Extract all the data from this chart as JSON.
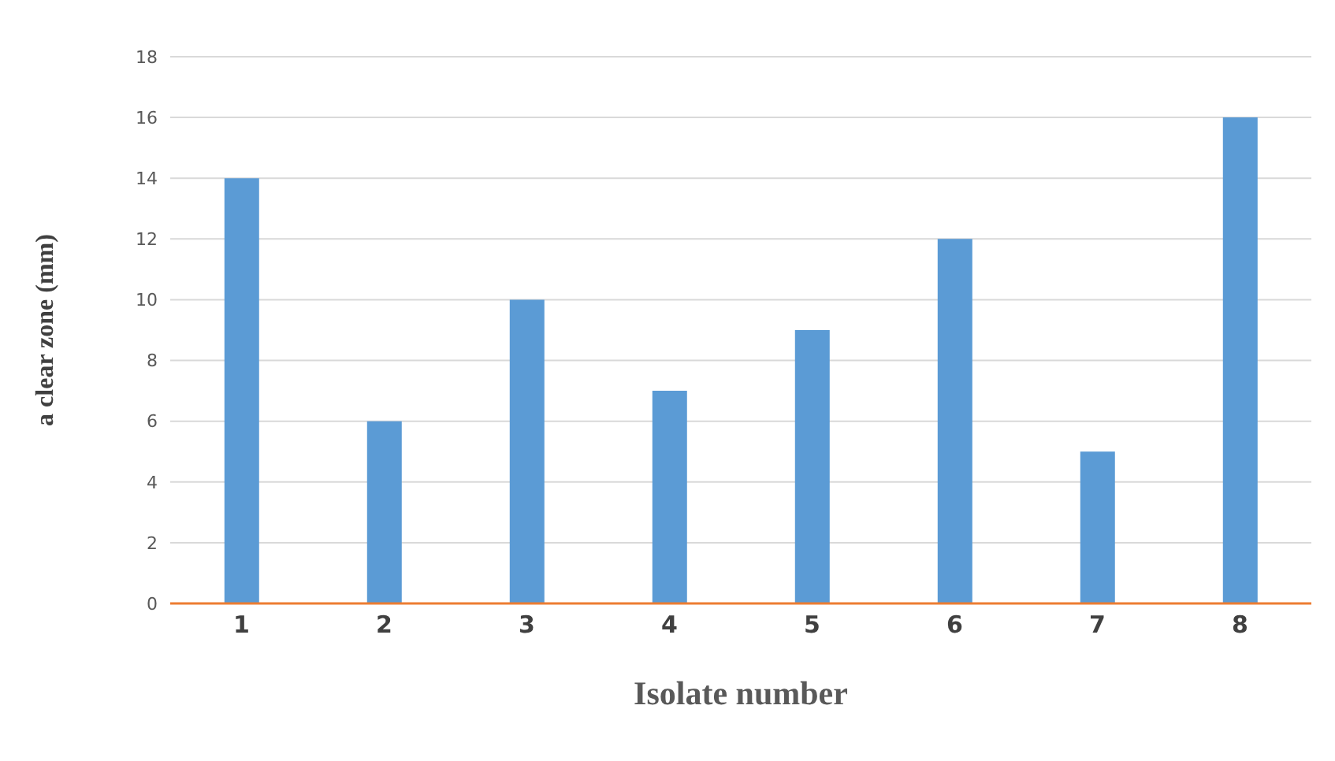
{
  "chart_data": {
    "type": "bar",
    "xlabel": "Isolate number",
    "ylabel": "a clear zone (mm)",
    "categories": [
      "1",
      "2",
      "3",
      "4",
      "5",
      "6",
      "7",
      "8"
    ],
    "values": [
      14,
      6,
      10,
      7,
      9,
      12,
      5,
      16
    ],
    "color": "#5b9bd5",
    "ylim": [
      0,
      18
    ],
    "yticks": [
      0,
      2,
      4,
      6,
      8,
      10,
      12,
      14,
      16,
      18
    ],
    "grid": "y"
  }
}
